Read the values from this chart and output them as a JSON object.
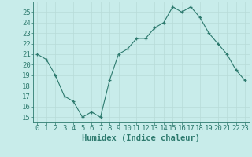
{
  "x": [
    0,
    1,
    2,
    3,
    4,
    5,
    6,
    7,
    8,
    9,
    10,
    11,
    12,
    13,
    14,
    15,
    16,
    17,
    18,
    19,
    20,
    21,
    22,
    23
  ],
  "y": [
    21,
    20.5,
    19,
    17,
    16.5,
    15,
    15.5,
    15,
    18.5,
    21,
    21.5,
    22.5,
    22.5,
    23.5,
    24,
    25.5,
    25,
    25.5,
    24.5,
    23,
    22,
    21,
    19.5,
    18.5
  ],
  "line_color": "#2d7a6e",
  "bg_color": "#c8ecea",
  "grid_color": "#b8dbd8",
  "xlabel": "Humidex (Indice chaleur)",
  "ylim": [
    14.5,
    26.0
  ],
  "xlim": [
    -0.5,
    23.5
  ],
  "yticks": [
    15,
    16,
    17,
    18,
    19,
    20,
    21,
    22,
    23,
    24,
    25
  ],
  "xticks": [
    0,
    1,
    2,
    3,
    4,
    5,
    6,
    7,
    8,
    9,
    10,
    11,
    12,
    13,
    14,
    15,
    16,
    17,
    18,
    19,
    20,
    21,
    22,
    23
  ],
  "tick_color": "#2d7a6e",
  "font_size": 6.5,
  "xlabel_fontsize": 7.5
}
